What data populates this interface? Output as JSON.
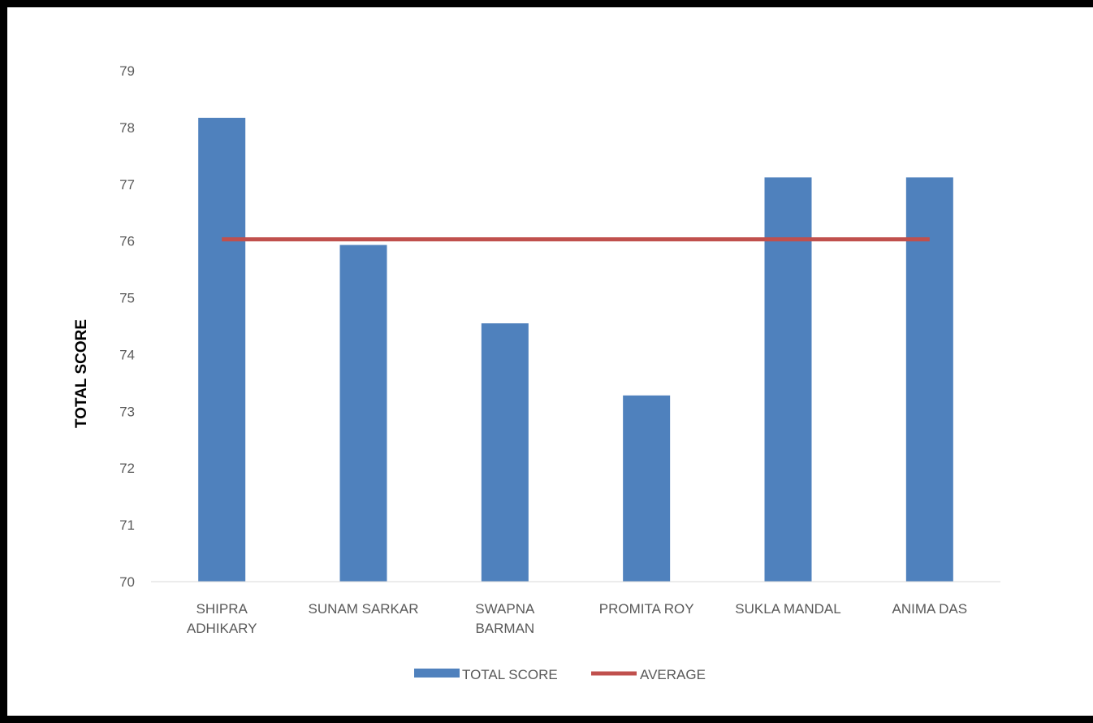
{
  "chart_data": {
    "type": "bar",
    "categories": [
      [
        "SHIPRA",
        "ADHIKARY"
      ],
      [
        "SUNAM SARKAR"
      ],
      [
        "SWAPNA",
        "BARMAN"
      ],
      [
        "PROMITA ROY"
      ],
      [
        "SUKLA MANDAL"
      ],
      [
        "ANIMA DAS"
      ]
    ],
    "series": [
      {
        "name": "TOTAL SCORE",
        "kind": "bar",
        "color": "#4F81BD",
        "values": [
          78.17,
          75.93,
          74.55,
          73.28,
          77.12,
          77.12
        ]
      },
      {
        "name": "AVERAGE",
        "kind": "line",
        "color": "#C0504D",
        "values": [
          76.03,
          76.03,
          76.03,
          76.03,
          76.03,
          76.03
        ]
      }
    ],
    "title": "",
    "xlabel": "",
    "ylabel": "TOTAL SCORE",
    "ylim": [
      70,
      79
    ],
    "yticks": [
      70,
      71,
      72,
      73,
      74,
      75,
      76,
      77,
      78,
      79
    ],
    "grid": false,
    "legend_position": "bottom"
  }
}
